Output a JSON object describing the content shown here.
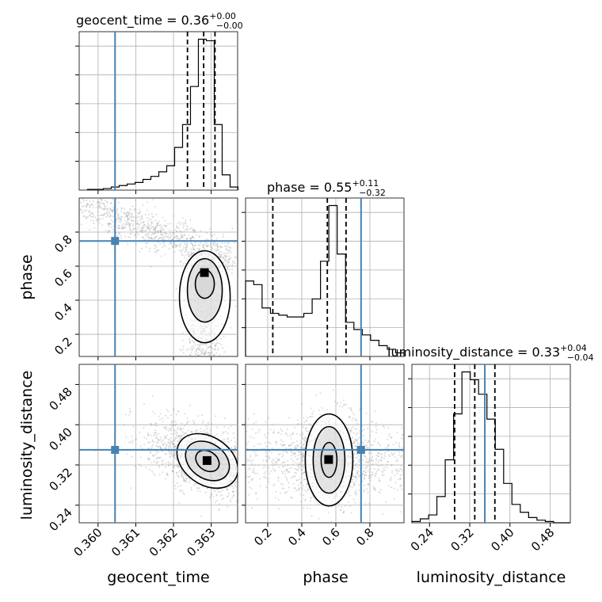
{
  "chart_data": {
    "type": "corner",
    "parameters": [
      {
        "key": "geocent_time",
        "label": "geocent_time",
        "range": [
          0.3595,
          0.3637
        ],
        "ticks": [
          0.36,
          0.361,
          0.362,
          0.363
        ],
        "tick_labels": [
          "0.360",
          "0.361",
          "0.362",
          "0.363"
        ],
        "truth": 0.36045,
        "title": {
          "main": "geocent_time = 0.36",
          "sup": "+0.00",
          "sub": "−0.00"
        },
        "quantiles": [
          0.36237,
          0.3628,
          0.3631
        ],
        "hist_edges": [
          0.35972,
          0.35993,
          0.36014,
          0.36035,
          0.36056,
          0.36077,
          0.36098,
          0.36119,
          0.3614,
          0.36161,
          0.36182,
          0.36203,
          0.36224,
          0.36245,
          0.36266,
          0.36287,
          0.36308,
          0.36329,
          0.3635,
          0.36371
        ],
        "hist_counts": [
          0.5,
          0.5,
          1,
          2,
          3,
          4,
          5,
          7,
          9,
          12,
          16,
          28,
          43,
          68,
          99,
          98,
          43,
          10,
          2
        ]
      },
      {
        "key": "phase",
        "label": "phase",
        "range": [
          0.07,
          1.0
        ],
        "ticks": [
          0.2,
          0.4,
          0.6,
          0.8
        ],
        "tick_labels": [
          "0.2",
          "0.4",
          "0.6",
          "0.8"
        ],
        "truth": 0.748,
        "title": {
          "main": "phase = 0.55",
          "sup": "+0.11",
          "sub": "−0.32"
        },
        "quantiles": [
          0.23,
          0.55,
          0.66
        ],
        "hist_edges": [
          0.07,
          0.118,
          0.167,
          0.216,
          0.265,
          0.314,
          0.363,
          0.412,
          0.461,
          0.51,
          0.559,
          0.608,
          0.657,
          0.706,
          0.755,
          0.804,
          0.853,
          0.902,
          0.951,
          1.0
        ],
        "hist_counts": [
          42,
          40,
          27,
          24,
          23,
          22,
          22,
          24,
          32,
          53,
          84,
          57,
          19,
          15,
          12,
          9,
          6,
          4,
          2
        ]
      },
      {
        "key": "luminosity_distance",
        "label": "luminosity_distance",
        "range": [
          0.205,
          0.52
        ],
        "ticks": [
          0.24,
          0.32,
          0.4,
          0.48
        ],
        "tick_labels": [
          "0.24",
          "0.32",
          "0.40",
          "0.48"
        ],
        "truth": 0.35,
        "title": {
          "main": "luminosity_distance = 0.33",
          "sup": "+0.04",
          "sub": "−0.04"
        },
        "quantiles": [
          0.29,
          0.33,
          0.37
        ],
        "hist_edges": [
          0.205,
          0.2216,
          0.2382,
          0.2547,
          0.2713,
          0.2879,
          0.3045,
          0.3211,
          0.3376,
          0.3542,
          0.3708,
          0.3874,
          0.4039,
          0.4205,
          0.4371,
          0.4537,
          0.4703,
          0.4868,
          0.5034,
          0.52
        ],
        "hist_counts": [
          1,
          3,
          6,
          20,
          48,
          83,
          115,
          109,
          98,
          79,
          56,
          30,
          14,
          8,
          4,
          2,
          1,
          0,
          0
        ]
      }
    ],
    "pairs": [
      {
        "x": "geocent_time",
        "y": "phase",
        "mode_x": 0.36283,
        "mode_y": 0.56
      },
      {
        "x": "geocent_time",
        "y": "luminosity_distance",
        "mode_x": 0.3629,
        "mode_y": 0.328
      },
      {
        "x": "phase",
        "y": "luminosity_distance",
        "mode_x": 0.56,
        "mode_y": 0.33
      }
    ],
    "grid": true,
    "colors": {
      "truth": "#4682b4",
      "hist": "#000000",
      "scatter": "#999999"
    }
  }
}
